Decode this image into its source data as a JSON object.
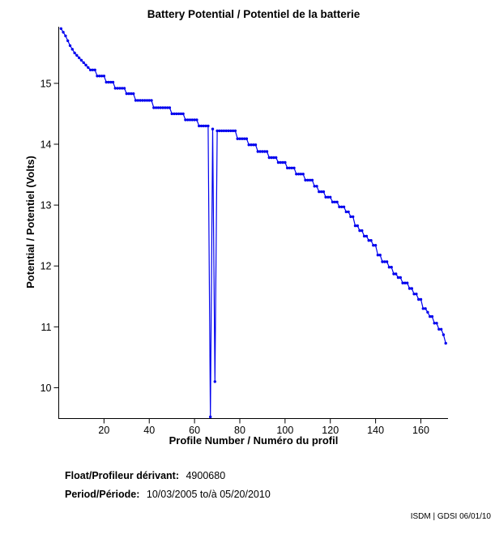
{
  "title": "Battery Potential / Potentiel de la batterie",
  "chart_data": {
    "type": "line",
    "title": "Battery Potential / Potentiel de la batterie",
    "xlabel": "Profile Number / Numéro du profil",
    "ylabel": "Potential / Potentiel (Volts)",
    "xlim": [
      0,
      172
    ],
    "ylim": [
      9.5,
      15.93
    ],
    "xticks": [
      20,
      40,
      60,
      80,
      100,
      120,
      140,
      160
    ],
    "yticks": [
      10,
      11,
      12,
      13,
      14,
      15
    ],
    "grid": false,
    "legend": "none",
    "line_color": "#0000EE",
    "marker": "dot",
    "series": [
      {
        "name": "battery-potential-volts",
        "x_start": 1,
        "x_step": 1,
        "n_points": 171,
        "y": [
          15.9,
          15.84,
          15.78,
          15.7,
          15.62,
          15.56,
          15.5,
          15.46,
          15.42,
          15.38,
          15.34,
          15.3,
          15.26,
          15.22,
          15.22,
          15.22,
          15.12,
          15.12,
          15.12,
          15.12,
          15.02,
          15.02,
          15.02,
          15.02,
          14.92,
          14.92,
          14.92,
          14.92,
          14.92,
          14.83,
          14.83,
          14.83,
          14.83,
          14.72,
          14.72,
          14.72,
          14.72,
          14.72,
          14.72,
          14.72,
          14.72,
          14.6,
          14.6,
          14.6,
          14.6,
          14.6,
          14.6,
          14.6,
          14.6,
          14.5,
          14.5,
          14.5,
          14.5,
          14.5,
          14.5,
          14.4,
          14.4,
          14.4,
          14.4,
          14.4,
          14.4,
          14.3,
          14.3,
          14.3,
          14.3,
          14.3,
          9.52,
          14.25,
          10.1,
          14.22,
          14.22,
          14.22,
          14.22,
          14.22,
          14.22,
          14.22,
          14.22,
          14.22,
          14.09,
          14.09,
          14.09,
          14.09,
          14.09,
          13.99,
          13.99,
          13.99,
          13.99,
          13.88,
          13.88,
          13.88,
          13.88,
          13.88,
          13.78,
          13.78,
          13.78,
          13.78,
          13.7,
          13.7,
          13.7,
          13.7,
          13.61,
          13.61,
          13.61,
          13.61,
          13.51,
          13.51,
          13.51,
          13.51,
          13.41,
          13.41,
          13.41,
          13.41,
          13.31,
          13.31,
          13.22,
          13.22,
          13.22,
          13.13,
          13.13,
          13.13,
          13.05,
          13.05,
          13.05,
          12.97,
          12.97,
          12.97,
          12.89,
          12.89,
          12.81,
          12.81,
          12.66,
          12.66,
          12.58,
          12.58,
          12.49,
          12.49,
          12.42,
          12.42,
          12.34,
          12.34,
          12.18,
          12.18,
          12.07,
          12.07,
          12.07,
          11.98,
          11.98,
          11.87,
          11.87,
          11.81,
          11.81,
          11.72,
          11.72,
          11.72,
          11.63,
          11.63,
          11.54,
          11.54,
          11.45,
          11.45,
          11.3,
          11.3,
          11.24,
          11.17,
          11.17,
          11.06,
          11.06,
          10.96,
          10.96,
          10.87,
          10.73
        ]
      }
    ],
    "annotations": {
      "spike_note": "deep voltage drop at profiles 67 and 69, clipped near plot bottom"
    }
  },
  "footer": {
    "float_label": "Float/Profileur dérivant:",
    "float_value": "4900680",
    "period_label": "Period/Période:",
    "period_value": "10/03/2005 to/à 05/20/2010",
    "credit": "ISDM | GDSI 06/01/10"
  }
}
